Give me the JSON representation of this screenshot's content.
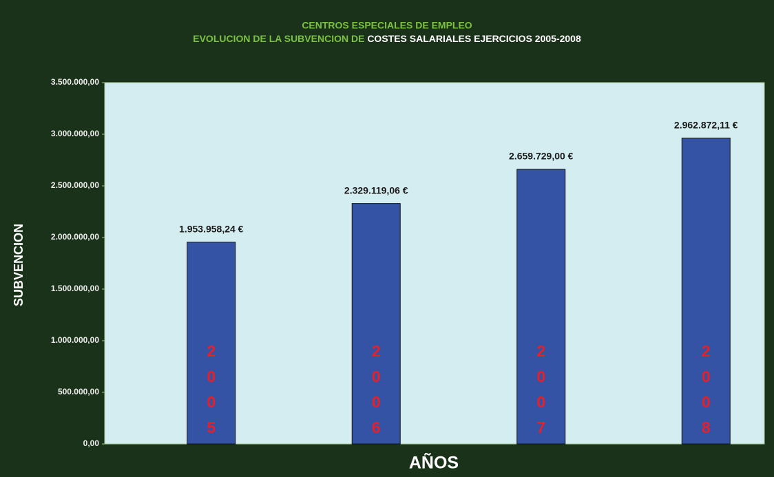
{
  "chart_data": {
    "type": "bar",
    "title": "CENTROS ESPECIALES DE EMPLEO",
    "subtitle": [
      "EVOLUCION DE LA SUBVENCION DE",
      "COSTES SALARIALES EJERCICIOS 2005-2008"
    ],
    "y_label": "SUBVENCION",
    "x_label": "AÑOS",
    "categories": [
      "2005",
      "2006",
      "2007",
      "2008"
    ],
    "values": [
      1953958.24,
      2329119.06,
      2659729.0,
      2962872.11
    ],
    "value_labels": [
      "1.953.958,24 €",
      "2.329.119,06 €",
      "2.659.729,00 €",
      "2.962.872,11 €"
    ],
    "color": "#3453a4",
    "ylim": [
      0,
      3500000
    ],
    "yticks": [
      {
        "value": 0,
        "label": "0,00"
      },
      {
        "value": 500000,
        "label": "500.000,00"
      },
      {
        "value": 1000000,
        "label": "1.000.000,00"
      },
      {
        "value": 1500000,
        "label": "1.500.000,00"
      },
      {
        "value": 2000000,
        "label": "2.000.000,00"
      },
      {
        "value": 2500000,
        "label": "2.500.000,00"
      },
      {
        "value": 3000000,
        "label": "3.000.000,00"
      },
      {
        "value": 3500000,
        "label": "3.500.000,00"
      }
    ],
    "grid": false
  }
}
